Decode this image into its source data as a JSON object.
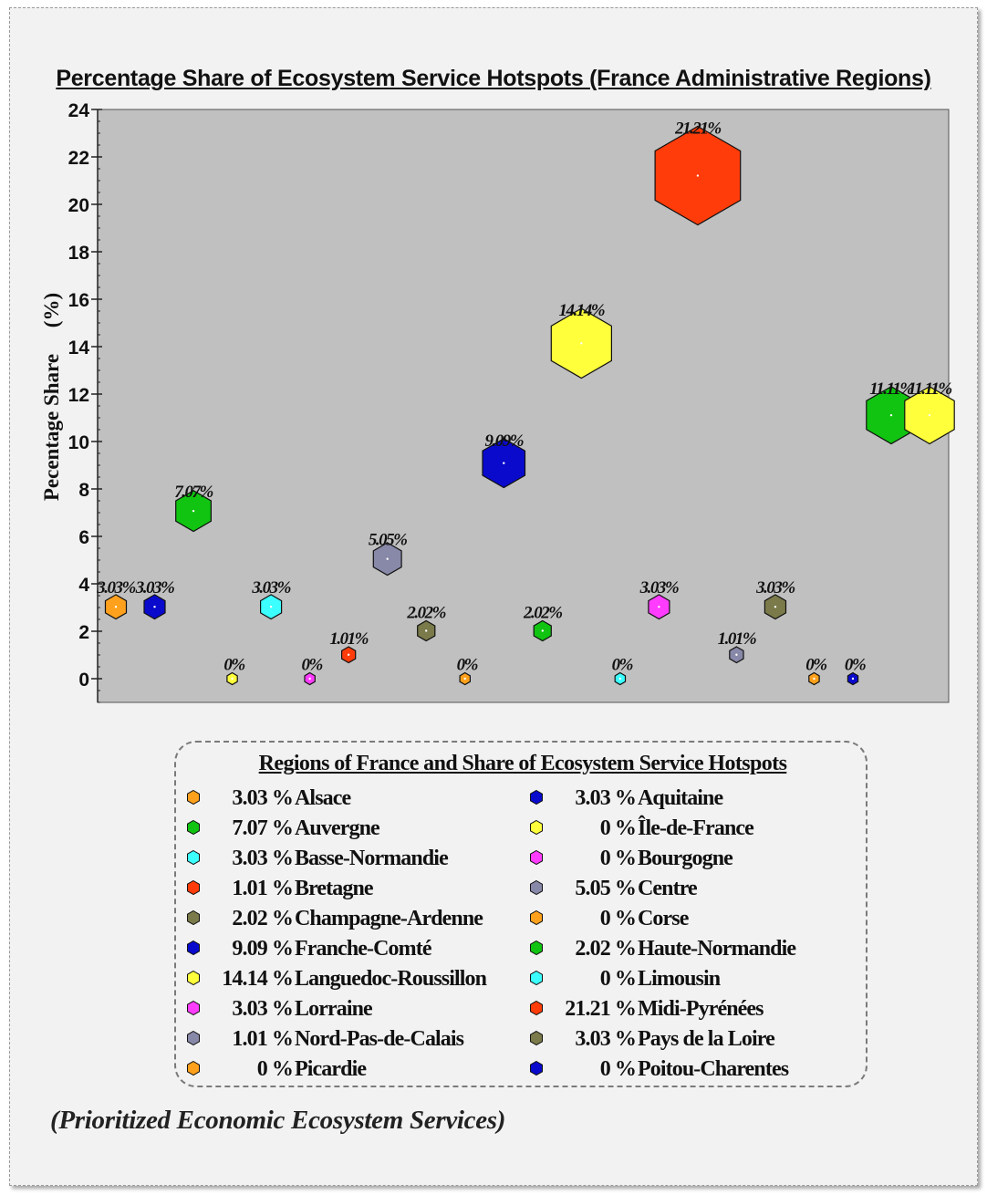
{
  "chart_data": {
    "type": "scatter",
    "title": "Percentage Share of Ecosystem Service Hotspots (France Administrative Regions)",
    "ylabel": "Pecentage Share     (%)",
    "xlabel": "",
    "ylim": [
      -1,
      24
    ],
    "yticks": [
      0,
      2,
      4,
      6,
      8,
      10,
      12,
      14,
      16,
      18,
      20,
      22,
      24
    ],
    "grid": false,
    "marker": "hexagon",
    "points": [
      {
        "region": "Alsace",
        "value": 3.03,
        "label": "3.03%",
        "color": "#FFA11C"
      },
      {
        "region": "Aquitaine",
        "value": 3.03,
        "label": "3.03%",
        "color": "#0A0ACD"
      },
      {
        "region": "Auvergne",
        "value": 7.07,
        "label": "7.07%",
        "color": "#11C411"
      },
      {
        "region": "Île-de-France",
        "value": 0,
        "label": "0%",
        "color": "#FFFF3C"
      },
      {
        "region": "Basse-Normandie",
        "value": 3.03,
        "label": "3.03%",
        "color": "#3CFFFF"
      },
      {
        "region": "Bourgogne",
        "value": 0,
        "label": "0%",
        "color": "#FF3CFF"
      },
      {
        "region": "Bretagne",
        "value": 1.01,
        "label": "1.01%",
        "color": "#FF3C0A"
      },
      {
        "region": "Centre",
        "value": 5.05,
        "label": "5.05%",
        "color": "#8888A8"
      },
      {
        "region": "Champagne-Ardenne",
        "value": 2.02,
        "label": "2.02%",
        "color": "#7A7A4A"
      },
      {
        "region": "Corse",
        "value": 0,
        "label": "0%",
        "color": "#FFA11C"
      },
      {
        "region": "Franche-Comté",
        "value": 9.09,
        "label": "9.09%",
        "color": "#0A0ACD"
      },
      {
        "region": "Haute-Normandie",
        "value": 2.02,
        "label": "2.02%",
        "color": "#11C411"
      },
      {
        "region": "Languedoc-Roussillon",
        "value": 14.14,
        "label": "14.14%",
        "color": "#FFFF3C"
      },
      {
        "region": "Limousin",
        "value": 0,
        "label": "0%",
        "color": "#3CFFFF"
      },
      {
        "region": "Lorraine",
        "value": 3.03,
        "label": "3.03%",
        "color": "#FF3CFF"
      },
      {
        "region": "Midi-Pyrénées",
        "value": 21.21,
        "label": "21.21%",
        "color": "#FF3C0A"
      },
      {
        "region": "Nord-Pas-de-Calais",
        "value": 1.01,
        "label": "1.01%",
        "color": "#8888A8"
      },
      {
        "region": "Pays de la Loire",
        "value": 3.03,
        "label": "3.03%",
        "color": "#7A7A4A"
      },
      {
        "region": "Picardie",
        "value": 0,
        "label": "0%",
        "color": "#FFA11C"
      },
      {
        "region": "Poitou-Charentes",
        "value": 0,
        "label": "0%",
        "color": "#0A0ACD"
      },
      {
        "region": "Auvergne",
        "value": 11.11,
        "label": "11.11%",
        "color": "#11C411"
      },
      {
        "region": "Languedoc-Roussillon",
        "value": 11.11,
        "label": "11.11%",
        "color": "#FFFF3C"
      }
    ],
    "colors": {
      "plot_background": "#C0C0C0"
    }
  },
  "legend": {
    "title": "Regions of France and Share of Ecosystem Service Hotspots",
    "left": [
      {
        "value": "3.03 %",
        "name": "Alsace",
        "color": "#FFA11C"
      },
      {
        "value": "7.07 %",
        "name": "Auvergne",
        "color": "#11C411"
      },
      {
        "value": "3.03 %",
        "name": "Basse-Normandie",
        "color": "#3CFFFF"
      },
      {
        "value": "1.01 %",
        "name": "Bretagne",
        "color": "#FF3C0A"
      },
      {
        "value": "2.02 %",
        "name": "Champagne-Ardenne",
        "color": "#7A7A4A"
      },
      {
        "value": "9.09 %",
        "name": "Franche-Comté",
        "color": "#0A0ACD"
      },
      {
        "value": "14.14 %",
        "name": "Languedoc-Roussillon",
        "color": "#FFFF3C"
      },
      {
        "value": "3.03 %",
        "name": "Lorraine",
        "color": "#FF3CFF"
      },
      {
        "value": "1.01 %",
        "name": "Nord-Pas-de-Calais",
        "color": "#8888A8"
      },
      {
        "value": "0 %",
        "name": "Picardie",
        "color": "#FFA11C"
      }
    ],
    "right": [
      {
        "value": "3.03 %",
        "name": "Aquitaine",
        "color": "#0A0ACD"
      },
      {
        "value": "0 %",
        "name": "Île-de-France",
        "color": "#FFFF3C"
      },
      {
        "value": "0 %",
        "name": "Bourgogne",
        "color": "#FF3CFF"
      },
      {
        "value": "5.05 %",
        "name": "Centre",
        "color": "#8888A8"
      },
      {
        "value": "0 %",
        "name": "Corse",
        "color": "#FFA11C"
      },
      {
        "value": "2.02 %",
        "name": "Haute-Normandie",
        "color": "#11C411"
      },
      {
        "value": "0 %",
        "name": "Limousin",
        "color": "#3CFFFF"
      },
      {
        "value": "21.21 %",
        "name": "Midi-Pyrénées",
        "color": "#FF3C0A"
      },
      {
        "value": "3.03 %",
        "name": "Pays de la Loire",
        "color": "#7A7A4A"
      },
      {
        "value": "0 %",
        "name": "Poitou-Charentes",
        "color": "#0A0ACD"
      }
    ]
  },
  "caption": "(Prioritized Economic Ecosystem Services)"
}
